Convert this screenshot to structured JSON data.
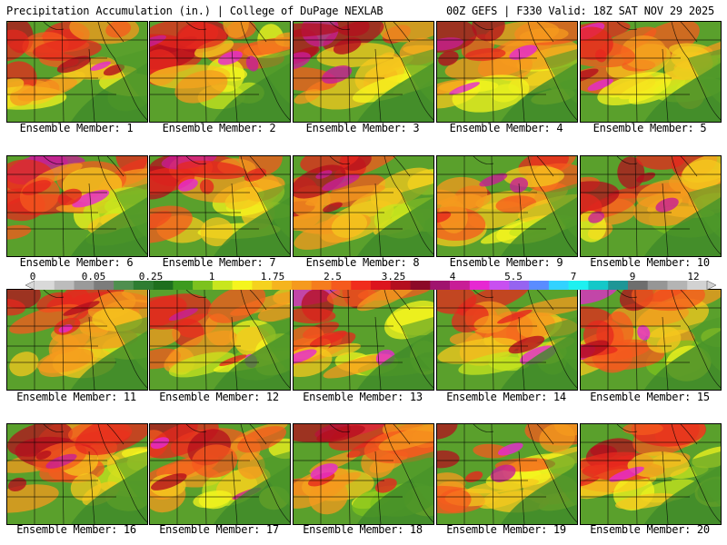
{
  "header": {
    "left": "Precipitation Accumulation (in.) | College of DuPage NEXLAB",
    "right": "00Z GEFS | F330 Valid: 18Z SAT NOV 29 2025"
  },
  "members": [
    "Ensemble Member: 1",
    "Ensemble Member: 2",
    "Ensemble Member: 3",
    "Ensemble Member: 4",
    "Ensemble Member: 5",
    "Ensemble Member: 6",
    "Ensemble Member: 7",
    "Ensemble Member: 8",
    "Ensemble Member: 9",
    "Ensemble Member: 10",
    "Ensemble Member: 11",
    "Ensemble Member: 12",
    "Ensemble Member: 13",
    "Ensemble Member: 14",
    "Ensemble Member: 15",
    "Ensemble Member: 16",
    "Ensemble Member: 17",
    "Ensemble Member: 18",
    "Ensemble Member: 19",
    "Ensemble Member: 20"
  ],
  "legend": {
    "ticks": [
      "0",
      "0.05",
      "0.25",
      "1",
      "1.75",
      "2.5",
      "3.25",
      "4",
      "5.5",
      "7",
      "9",
      "12"
    ],
    "colors": [
      "#d9d9d9",
      "#bcbcbc",
      "#9a9a9a",
      "#7c7c7c",
      "#4f8f4f",
      "#2e7d32",
      "#1e6f1e",
      "#3c9a1e",
      "#7cc21e",
      "#c8e61e",
      "#f5f51e",
      "#f5d21e",
      "#f5b41e",
      "#f59a1e",
      "#f57d1e",
      "#f55a1e",
      "#f02d1e",
      "#dc141e",
      "#b40f1e",
      "#8c0a28",
      "#a0146e",
      "#c81e96",
      "#e628d2",
      "#c850f0",
      "#9664f0",
      "#5a8cff",
      "#32d2ff",
      "#1ef0f0",
      "#14c8c8",
      "#1e9696",
      "#6e6e6e",
      "#969696",
      "#b4b4b4",
      "#d2d2d2"
    ]
  }
}
